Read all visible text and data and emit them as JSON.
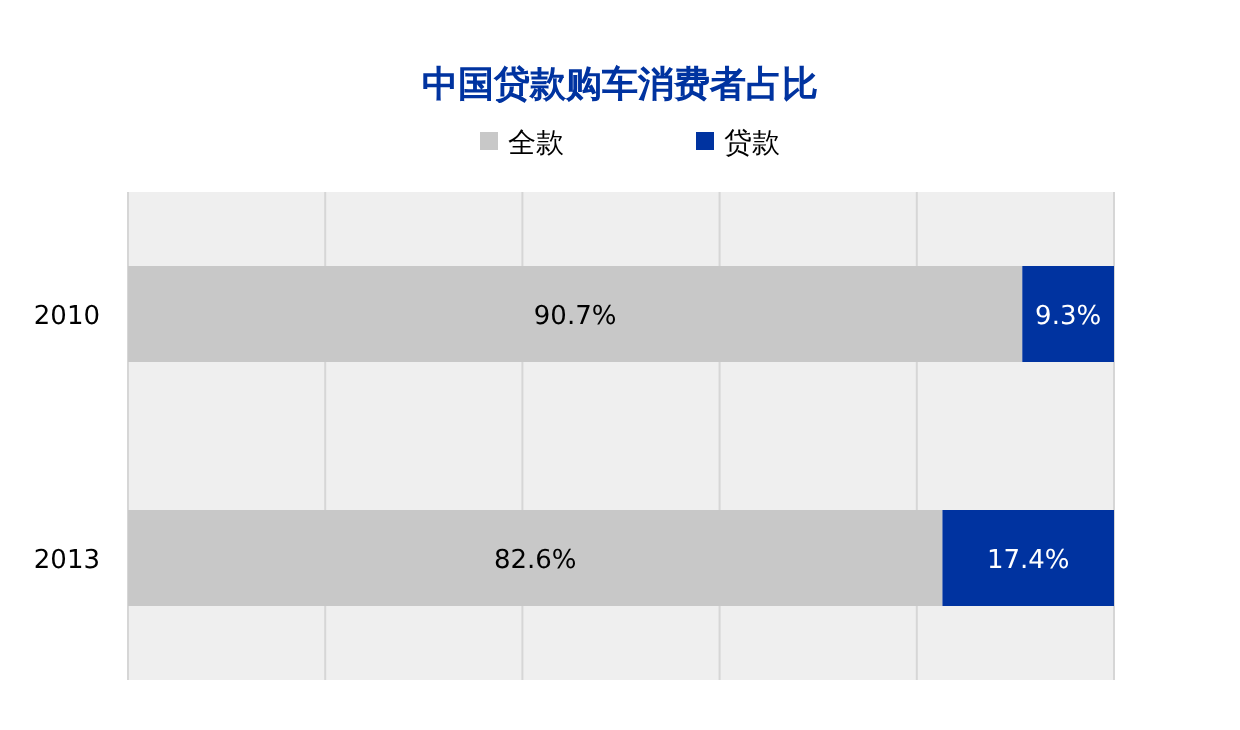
{
  "chart_data": {
    "type": "bar",
    "orientation": "horizontal",
    "stacked": true,
    "title": "中国贷款购车消费者占比",
    "categories": [
      "2010",
      "2013"
    ],
    "series": [
      {
        "name": "全款",
        "color": "#c8c8c8",
        "values": [
          90.7,
          82.6
        ],
        "value_labels": [
          "90.7%",
          "82.6%"
        ]
      },
      {
        "name": "贷款",
        "color": "#0033a0",
        "values": [
          9.3,
          17.4
        ],
        "value_labels": [
          "9.3%",
          "17.4%"
        ]
      }
    ],
    "xlim": [
      0,
      100
    ],
    "xticks": [
      {
        "value": 0,
        "label": null
      },
      {
        "value": 20,
        "label": null
      },
      {
        "value": 40,
        "label": null
      },
      {
        "value": 60,
        "label": null
      },
      {
        "value": 80,
        "label": null
      },
      {
        "value": 100,
        "label": null
      }
    ],
    "grid": "x",
    "legend": "top",
    "tick_labels": "y"
  }
}
